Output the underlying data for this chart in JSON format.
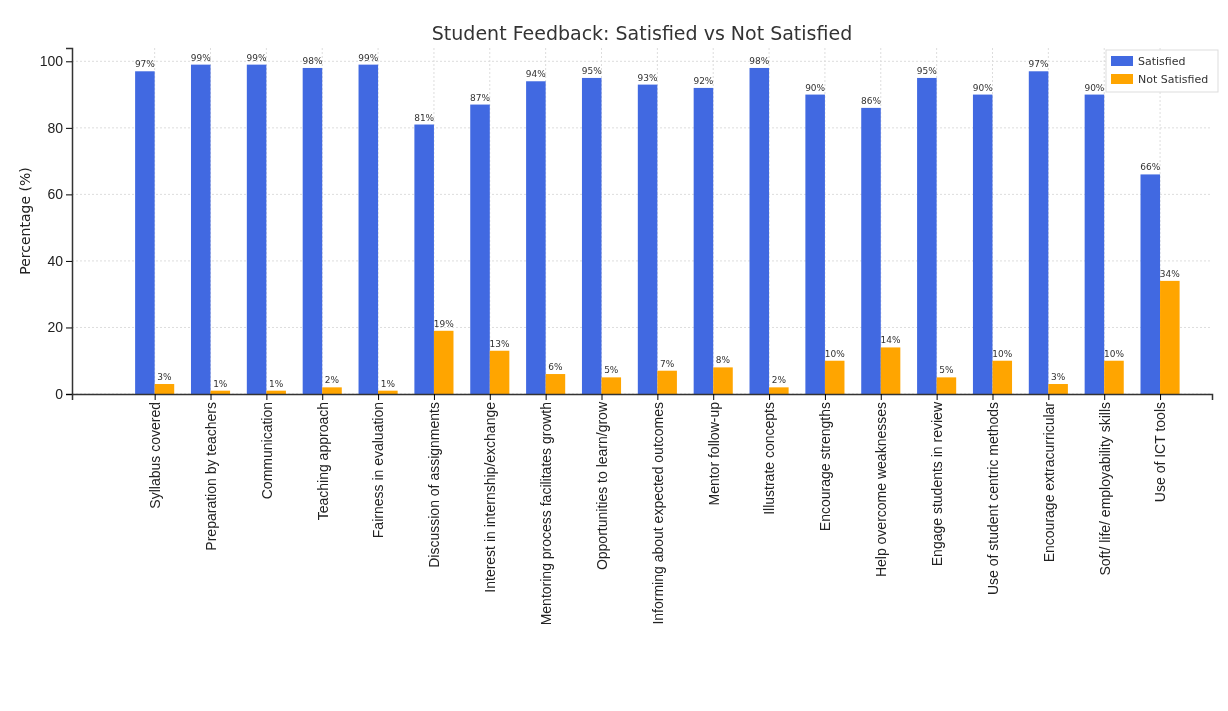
{
  "chart_data": {
    "type": "bar",
    "title": "Student Feedback: Satisfied vs Not Satisfied",
    "ylabel": "Percentage (%)",
    "categories": [
      "Syllabus covered",
      "Preparation by teachers",
      "Communication",
      "Teaching approach",
      "Fairness in evaluation",
      "Discussion of assignments",
      "Interest in internship/exchange",
      "Mentoring process facilitates growth",
      "Opportunities to learn/grow",
      "Informing about expected outcomes",
      "Mentor follow-up",
      "Illustrate concepts",
      "Encourage strengths",
      "Help overcome weaknesses",
      "Engage students in review",
      "Use of student centric methods",
      "Encourage extracurricular",
      "Soft/ life/ employability skills",
      "Use of ICT tools"
    ],
    "series": [
      {
        "name": "Satisfied",
        "color": "#4169e1",
        "values": [
          97,
          99,
          99,
          98,
          99,
          81,
          87,
          94,
          95,
          93,
          92,
          98,
          90,
          86,
          95,
          90,
          97,
          90,
          66
        ],
        "value_labels": [
          "97%",
          "99%",
          "99%",
          "98%",
          "99%",
          "81%",
          "87%",
          "94%",
          "95%",
          "93%",
          "92%",
          "98%",
          "90%",
          "86%",
          "95%",
          "90%",
          "97%",
          "90%",
          "66%"
        ]
      },
      {
        "name": "Not Satisfied",
        "color": "#ffa500",
        "values": [
          3,
          1,
          1,
          2,
          1,
          19,
          13,
          6,
          5,
          7,
          8,
          2,
          10,
          14,
          5,
          10,
          3,
          10,
          34
        ],
        "value_labels": [
          "3%",
          "1%",
          "1%",
          "2%",
          "1%",
          "19%",
          "13%",
          "6%",
          "5%",
          "7%",
          "8%",
          "2%",
          "10%",
          "14%",
          "5%",
          "10%",
          "3%",
          "10%",
          "34%"
        ]
      }
    ],
    "ylim": [
      0,
      104
    ],
    "yticks": [
      0,
      20,
      40,
      60,
      80,
      100
    ],
    "grid": true,
    "legend": "top right"
  }
}
